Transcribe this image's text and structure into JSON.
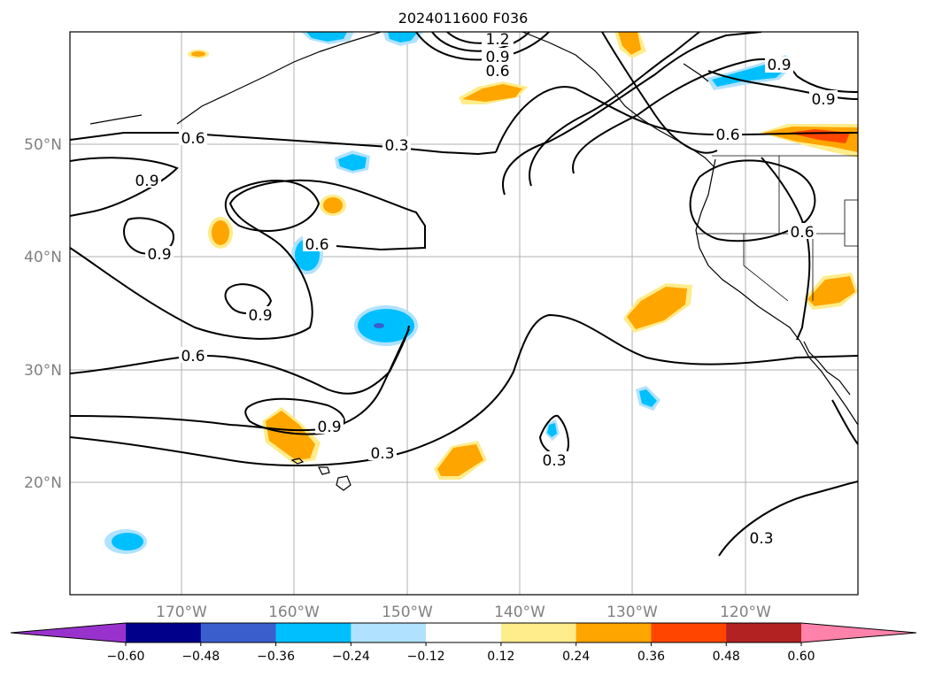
{
  "title": "2024011600 F036",
  "lat_labels": [
    "50°N",
    "40°N",
    "30°N",
    "20°N"
  ],
  "lon_labels": [
    "170°W",
    "160°W",
    "150°W",
    "140°W",
    "130°W",
    "120°W"
  ],
  "colorbar": {
    "ticks": [
      "−0.60",
      "−0.48",
      "−0.36",
      "−0.24",
      "−0.12",
      "0.12",
      "0.24",
      "0.36",
      "0.48",
      "0.60"
    ],
    "colors": [
      "#9932cc",
      "#00008b",
      "#3a5fcd",
      "#00bfff",
      "#b0e2ff",
      "#ffffff",
      "#ffec8b",
      "#ffa500",
      "#ff4500",
      "#b22222",
      "#ff82ab"
    ]
  },
  "contour_labels": [
    "1.2",
    "0.9",
    "0.6",
    "0.9",
    "0.9",
    "0.6",
    "0.3",
    "0.6",
    "0.9",
    "0.6",
    "0.6",
    "0.9",
    "0.9",
    "0.6",
    "0.9",
    "0.3",
    "0.3",
    "0.3"
  ]
}
